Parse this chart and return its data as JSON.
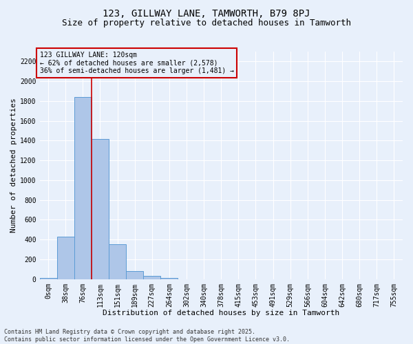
{
  "title": "123, GILLWAY LANE, TAMWORTH, B79 8PJ",
  "subtitle": "Size of property relative to detached houses in Tamworth",
  "xlabel": "Distribution of detached houses by size in Tamworth",
  "ylabel": "Number of detached properties",
  "categories": [
    "0sqm",
    "38sqm",
    "76sqm",
    "113sqm",
    "151sqm",
    "189sqm",
    "227sqm",
    "264sqm",
    "302sqm",
    "340sqm",
    "378sqm",
    "415sqm",
    "453sqm",
    "491sqm",
    "529sqm",
    "566sqm",
    "604sqm",
    "642sqm",
    "680sqm",
    "717sqm",
    "755sqm"
  ],
  "values": [
    15,
    430,
    1840,
    1415,
    355,
    80,
    35,
    10,
    0,
    0,
    0,
    0,
    0,
    0,
    0,
    0,
    0,
    0,
    0,
    0,
    0
  ],
  "bar_color": "#aec6e8",
  "bar_edge_color": "#5b9bd5",
  "vline_x": 3.0,
  "vline_color": "#cc0000",
  "annotation_text": "123 GILLWAY LANE: 120sqm\n← 62% of detached houses are smaller (2,578)\n36% of semi-detached houses are larger (1,481) →",
  "annotation_box_color": "#cc0000",
  "background_color": "#e8f0fb",
  "grid_color": "#ffffff",
  "ylim": [
    0,
    2300
  ],
  "yticks": [
    0,
    200,
    400,
    600,
    800,
    1000,
    1200,
    1400,
    1600,
    1800,
    2000,
    2200
  ],
  "footnote": "Contains HM Land Registry data © Crown copyright and database right 2025.\nContains public sector information licensed under the Open Government Licence v3.0.",
  "title_fontsize": 10,
  "subtitle_fontsize": 9,
  "label_fontsize": 8,
  "tick_fontsize": 7,
  "annot_fontsize": 7,
  "footnote_fontsize": 6
}
